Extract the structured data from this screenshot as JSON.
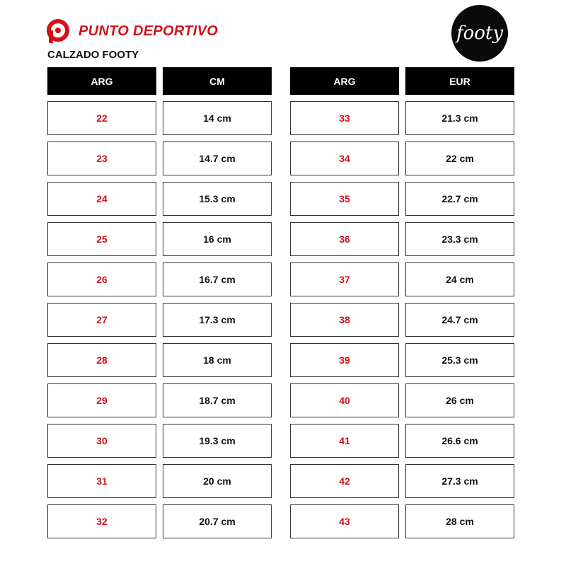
{
  "brand": {
    "name": "PUNTO DEPORTIVO",
    "color": "#d0121b"
  },
  "subtitle": "CALZADO FOOTY",
  "footy_logo": {
    "text": "footy"
  },
  "left_table": {
    "headers": [
      "ARG",
      "CM"
    ],
    "rows": [
      [
        "22",
        "14 cm"
      ],
      [
        "23",
        "14.7 cm"
      ],
      [
        "24",
        "15.3 cm"
      ],
      [
        "25",
        "16 cm"
      ],
      [
        "26",
        "16.7 cm"
      ],
      [
        "27",
        "17.3 cm"
      ],
      [
        "28",
        "18 cm"
      ],
      [
        "29",
        "18.7 cm"
      ],
      [
        "30",
        "19.3 cm"
      ],
      [
        "31",
        "20 cm"
      ],
      [
        "32",
        "20.7 cm"
      ]
    ]
  },
  "right_table": {
    "headers": [
      "ARG",
      "EUR"
    ],
    "rows": [
      [
        "33",
        "21.3 cm"
      ],
      [
        "34",
        "22 cm"
      ],
      [
        "35",
        "22.7 cm"
      ],
      [
        "36",
        "23.3 cm"
      ],
      [
        "37",
        "24 cm"
      ],
      [
        "38",
        "24.7 cm"
      ],
      [
        "39",
        "25.3 cm"
      ],
      [
        "40",
        "26 cm"
      ],
      [
        "41",
        "26.6 cm"
      ],
      [
        "42",
        "27.3 cm"
      ],
      [
        "43",
        "28 cm"
      ]
    ]
  }
}
